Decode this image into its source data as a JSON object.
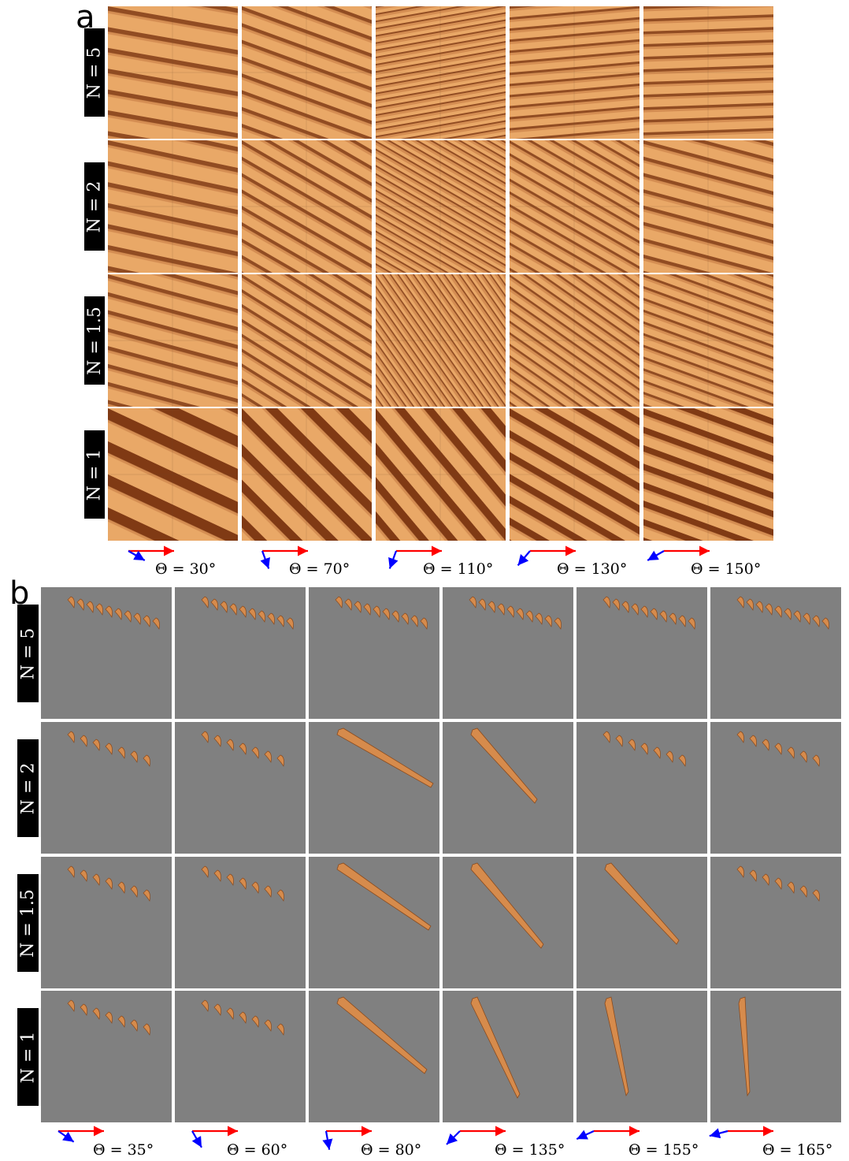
{
  "panel_a": {
    "letter": "a",
    "row_labels": [
      "N = 5",
      "N = 2",
      "N = 1.5",
      "N = 1"
    ],
    "theta_labels": [
      "Θ = 30°",
      "Θ = 70°",
      "Θ = 110°",
      "Θ = 130°",
      "Θ = 150°"
    ],
    "wind_arrow_angles_deg": [
      30,
      70,
      110,
      130,
      150
    ]
  },
  "panel_b": {
    "letter": "b",
    "row_labels": [
      "N = 5",
      "N = 2",
      "N = 1.5",
      "N = 1"
    ],
    "theta_labels": [
      "Θ = 35°",
      "Θ = 60°",
      "Θ = 80°",
      "Θ = 135°",
      "Θ = 155°",
      "Θ = 165°"
    ],
    "wind_arrow_angles_deg": [
      35,
      60,
      80,
      135,
      155,
      165
    ]
  },
  "colors": {
    "sand_light": "#e9a867",
    "sand_dark": "#7a3410",
    "bedrock_gray": "#808080",
    "primary_wind": "#ff0000",
    "secondary_wind": "#0000ff"
  }
}
